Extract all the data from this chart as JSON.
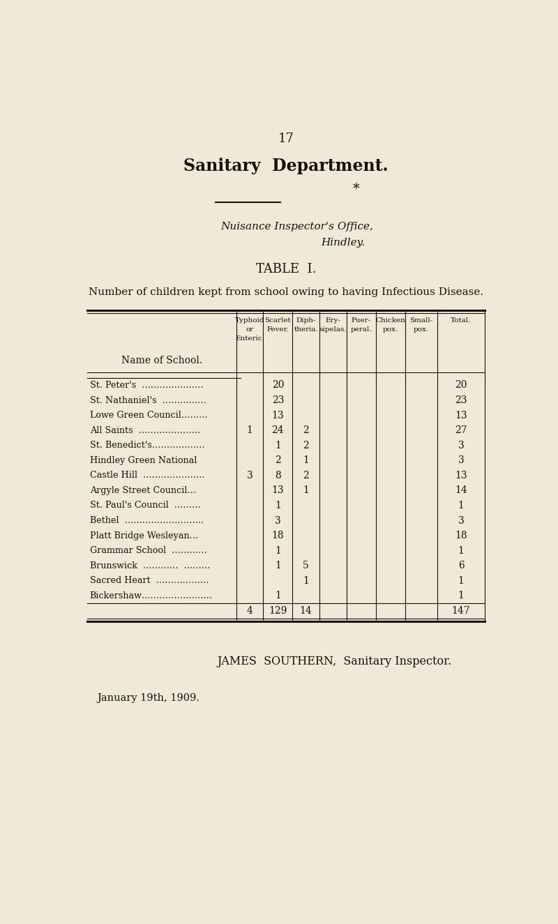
{
  "bg_color": "#f0e8d8",
  "page_number": "17",
  "title": "Sanitary  Department.",
  "subtitle1": "Nuisance Inspector's Office,",
  "subtitle2": "Hindley.",
  "table_title": "TABLE  I.",
  "table_subtitle": "Number of children kept from school owing to having Infectious Disease.",
  "col_headers": [
    [
      "Typhoid",
      "or",
      "Enteric."
    ],
    [
      "Scarlet",
      "Fever."
    ],
    [
      "Diph-",
      "theria."
    ],
    [
      "Ery-",
      "sipelas."
    ],
    [
      "Puer-",
      "peral."
    ],
    [
      "Chicken",
      "pox."
    ],
    [
      "Small-",
      "pox."
    ],
    [
      "Total."
    ]
  ],
  "schools": [
    "St. Peter's  …………………",
    "St. Nathaniel's  ……………",
    "Lowe Green Council………",
    "All Saints  …………………",
    "St. Benedict's………………",
    "Hindley Green National",
    "Castle Hill  …………………",
    "Argyle Street Council…",
    "St. Paul's Council  ………",
    "Bethel  ………………………",
    "Platt Bridge Wesleyan…",
    "Grammar School  …………",
    "Brunswick  …………  ………",
    "Sacred Heart  ………………",
    "Bickershaw……………………"
  ],
  "data": [
    [
      "",
      "20",
      "",
      "",
      "",
      "",
      "",
      "20"
    ],
    [
      "",
      "23",
      "",
      "",
      "",
      "",
      "",
      "23"
    ],
    [
      "",
      "13",
      "",
      "",
      "",
      "",
      "",
      "13"
    ],
    [
      "1",
      "24",
      "2",
      "",
      "",
      "",
      "",
      "27"
    ],
    [
      "",
      "1",
      "2",
      "",
      "",
      "",
      "",
      "3"
    ],
    [
      "",
      "2",
      "1",
      "",
      "",
      "",
      "",
      "3"
    ],
    [
      "3",
      "8",
      "2",
      "",
      "",
      "",
      "",
      "13"
    ],
    [
      "",
      "13",
      "1",
      "",
      "",
      "",
      "",
      "14"
    ],
    [
      "",
      "1",
      "",
      "",
      "",
      "",
      "",
      "1"
    ],
    [
      "",
      "3",
      "",
      "",
      "",
      "",
      "",
      "3"
    ],
    [
      "",
      "18",
      "",
      "",
      "",
      "",
      "",
      "18"
    ],
    [
      "",
      "1",
      "",
      "",
      "",
      "",
      "",
      "1"
    ],
    [
      "",
      "1",
      "5",
      "",
      "",
      "",
      "",
      "6"
    ],
    [
      "",
      "",
      "1",
      "",
      "",
      "",
      "",
      "1"
    ],
    [
      "",
      "1",
      "",
      "",
      "",
      "",
      "",
      "1"
    ]
  ],
  "totals": [
    "4",
    "129",
    "14",
    "",
    "",
    "",
    "",
    "147"
  ],
  "footer1": "JAMES  SOUTHERN,  Sanitary Inspector.",
  "footer2": "January 19th, 1909.",
  "text_color": "#1a1008"
}
